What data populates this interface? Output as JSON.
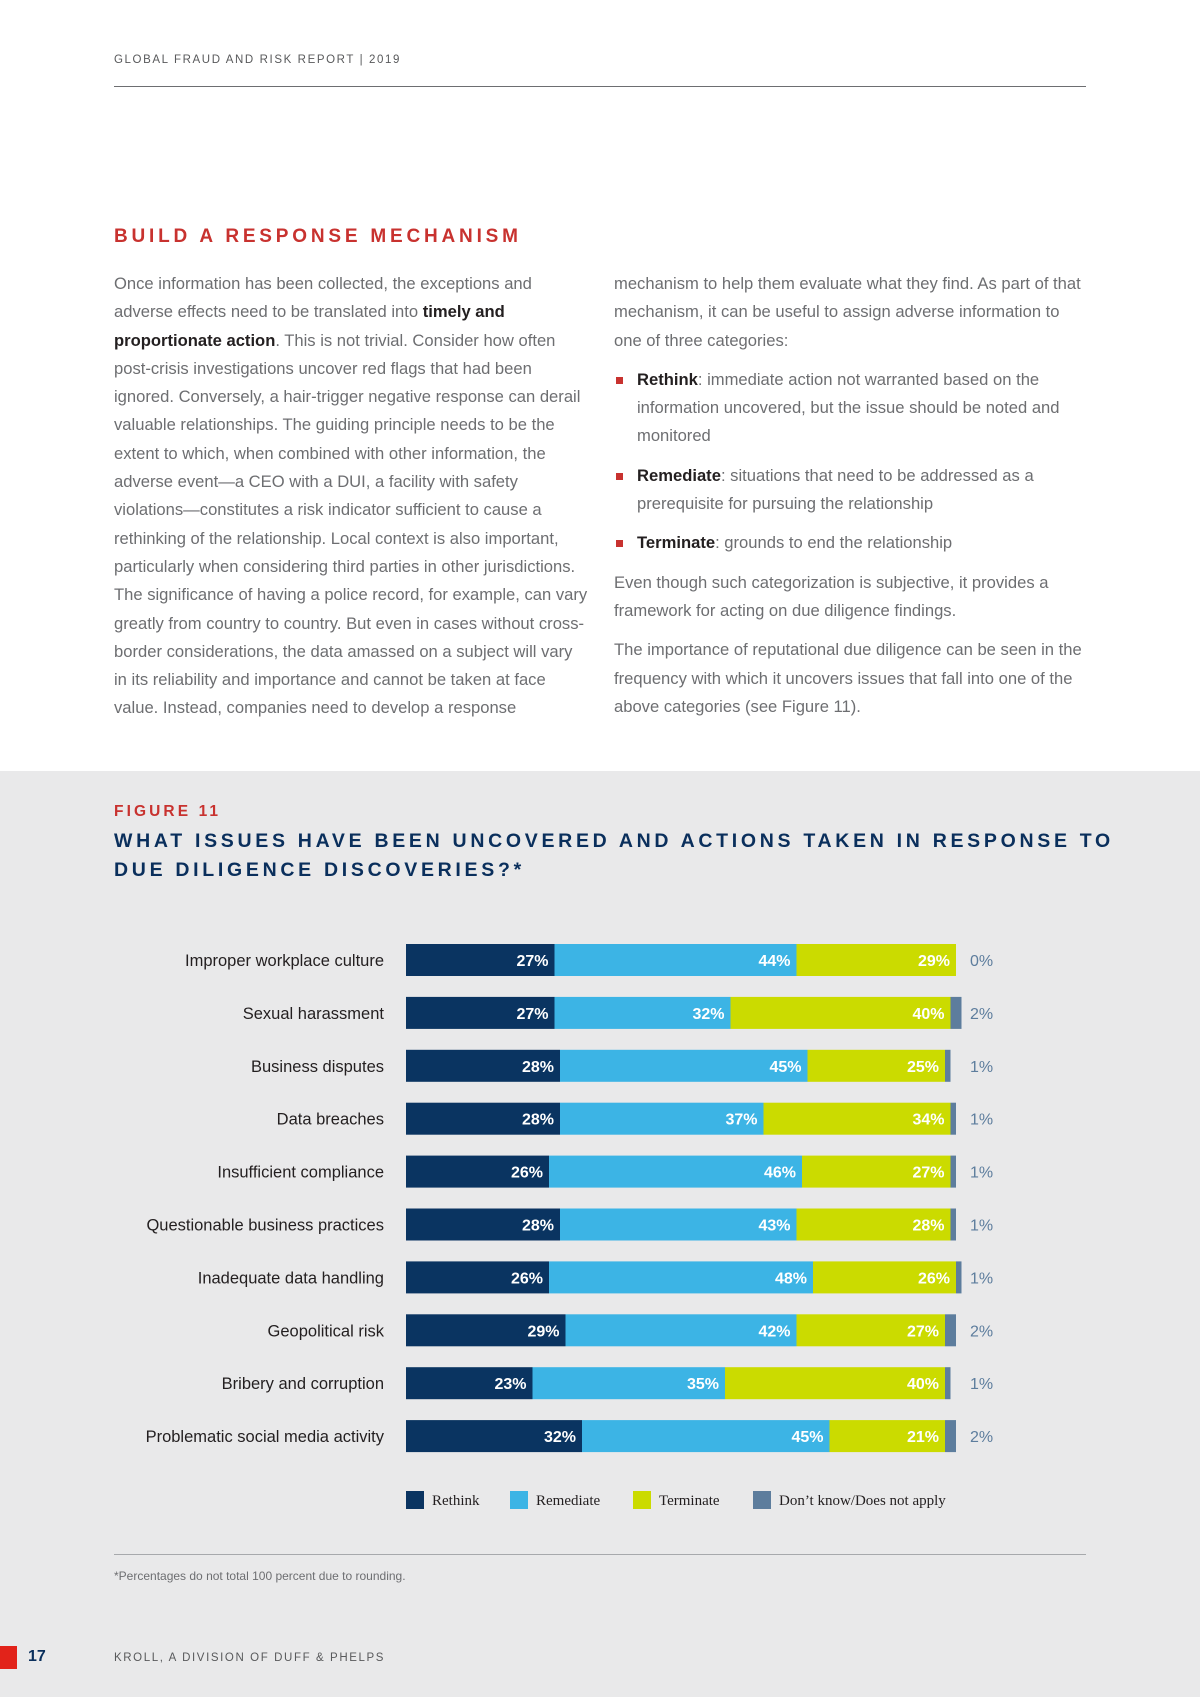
{
  "header": {
    "report_title": "GLOBAL FRAUD AND RISK REPORT | 2019"
  },
  "section": {
    "title": "BUILD A RESPONSE MECHANISM",
    "left_paragraph": {
      "before_bold": "Once information has been collected, the exceptions and adverse effects need to be translated into ",
      "bold": "timely and proportionate action",
      "after_bold": ". This is not trivial. Consider how often post-crisis investigations uncover red flags that had been ignored. Conversely, a hair-trigger negative response can derail valuable relationships. The guiding principle needs to be the extent to which, when combined with other information, the adverse event—a CEO with a DUI, a facility with safety violations—constitutes a risk indicator sufficient to cause a rethinking of the relationship. Local context is also important, particularly when considering third parties in other jurisdictions. The significance of having a police record, for example, can vary greatly from country to country. But even in cases without cross-border considerations, the data amassed on a subject will vary in its reliability and importance and cannot be taken at face value. Instead, companies need to develop a response"
    },
    "right_intro": "mechanism to help them evaluate what they find. As part of that mechanism, it can be useful to assign adverse information to one of three categories:",
    "bullets": [
      {
        "term": "Rethink",
        "text": ": immediate action not warranted based on the information uncovered, but the issue should be noted and monitored"
      },
      {
        "term": "Remediate",
        "text": ": situations that need to be addressed as a prerequisite for pursuing the relationship"
      },
      {
        "term": "Terminate",
        "text": ": grounds to end the relationship"
      }
    ],
    "right_para2": "Even though such categorization is subjective, it provides a framework for acting on due diligence findings.",
    "right_para3": "The importance of reputational due diligence can be seen in the frequency with which it uncovers issues that fall into one of the above categories (see Figure 11)."
  },
  "figure": {
    "label": "FIGURE 11",
    "title": "WHAT ISSUES HAVE BEEN UNCOVERED AND ACTIONS TAKEN IN RESPONSE TO DUE DILIGENCE DISCOVERIES?*"
  },
  "chart_data": {
    "type": "bar",
    "orientation": "horizontal",
    "stacked": true,
    "title": "WHAT ISSUES HAVE BEEN UNCOVERED AND ACTIONS TAKEN IN RESPONSE TO DUE DILIGENCE DISCOVERIES?*",
    "categories": [
      "Improper workplace culture",
      "Sexual harassment",
      "Business disputes",
      "Data breaches",
      "Insufficient compliance",
      "Questionable business practices",
      "Inadequate data handling",
      "Geopolitical risk",
      "Bribery and corruption",
      "Problematic social media activity"
    ],
    "series": [
      {
        "name": "Rethink",
        "color": "#0a3461",
        "values": [
          27,
          27,
          28,
          28,
          26,
          28,
          26,
          29,
          23,
          32
        ]
      },
      {
        "name": "Remediate",
        "color": "#3cb4e5",
        "values": [
          44,
          32,
          45,
          37,
          46,
          43,
          48,
          42,
          35,
          45
        ]
      },
      {
        "name": "Terminate",
        "color": "#cbdb00",
        "values": [
          29,
          40,
          25,
          34,
          27,
          28,
          26,
          27,
          40,
          21
        ]
      },
      {
        "name": "Don’t know/Does not apply",
        "color": "#5d7d9d",
        "values": [
          0,
          2,
          1,
          1,
          1,
          1,
          1,
          2,
          1,
          2
        ]
      }
    ],
    "unit": "%",
    "legend_position": "bottom",
    "xlabel": "",
    "ylabel": ""
  },
  "footnote": "*Percentages do not total 100 percent due to rounding.",
  "footer": {
    "page_number": "17",
    "company": "KROLL, A DIVISION OF DUFF & PHELPS"
  }
}
